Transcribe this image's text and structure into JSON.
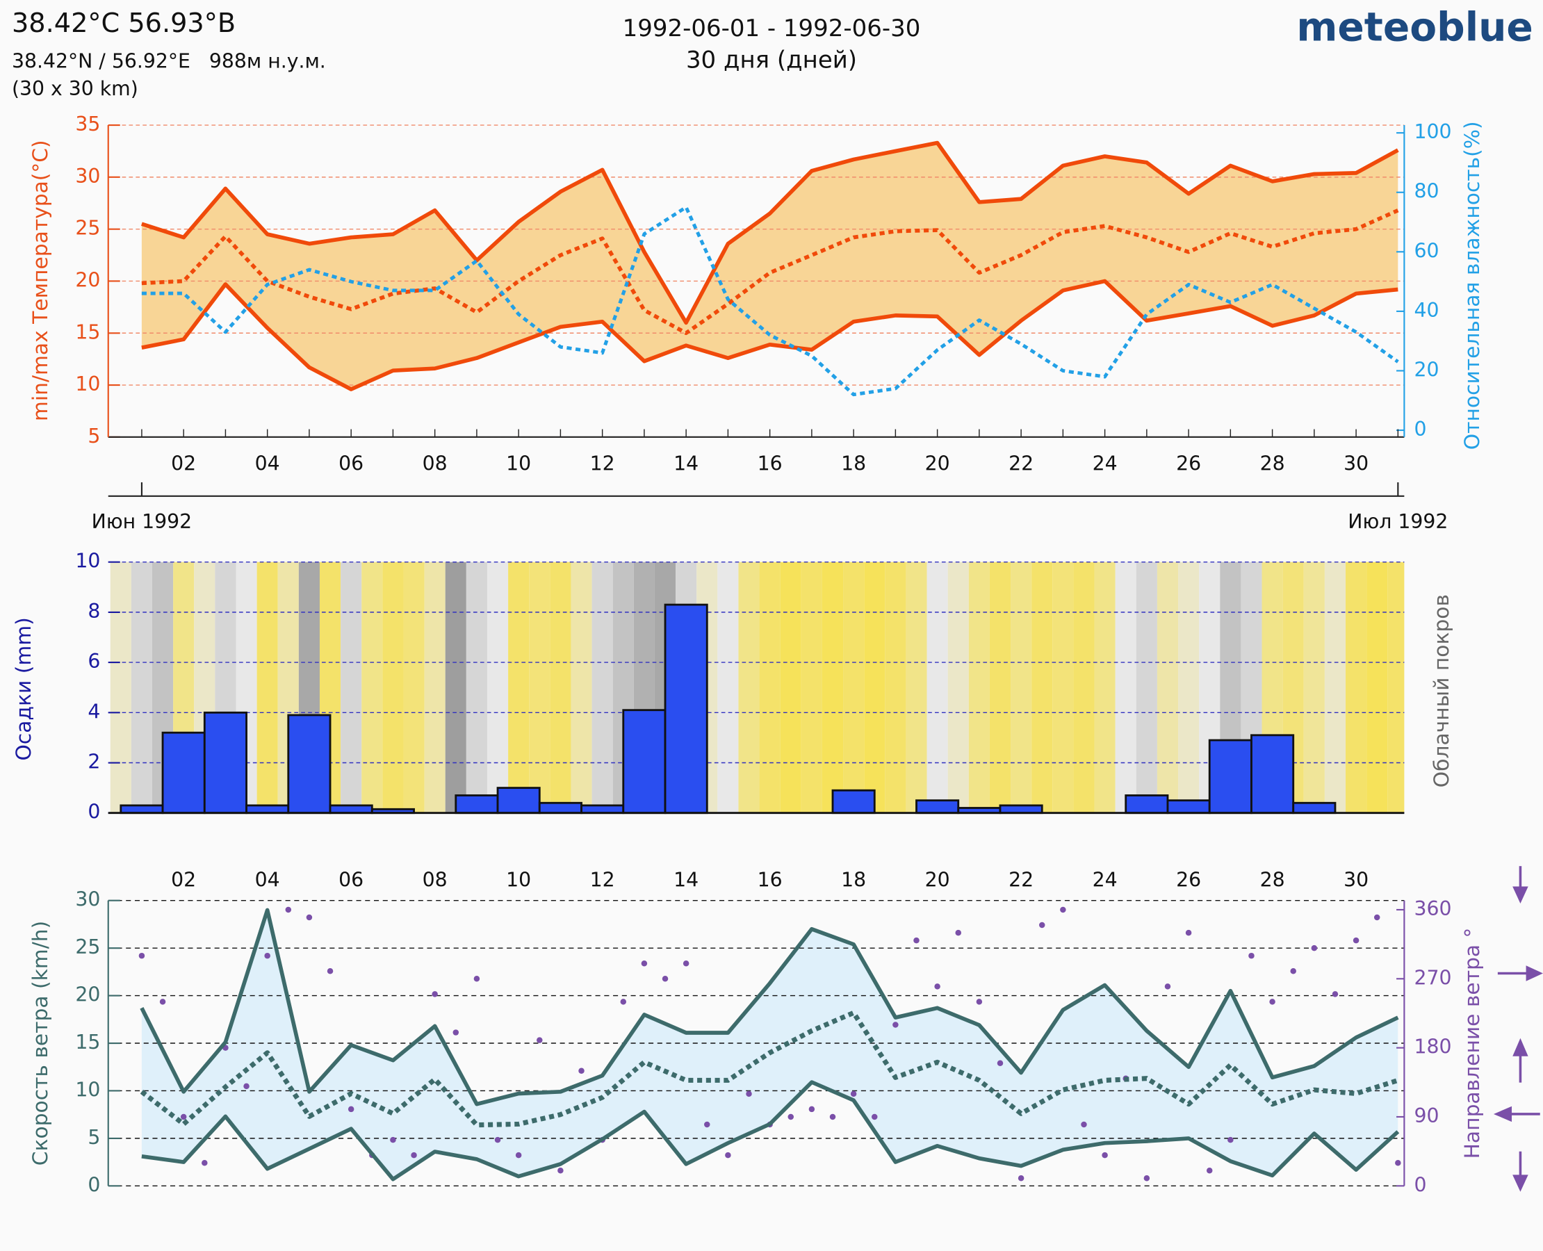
{
  "header": {
    "title": "38.42°C 56.93°B",
    "coords": "38.42°N / 56.92°E   988м н.у.м.",
    "resolution": "(30 x 30 km)",
    "period": "1992-06-01 - 1992-06-30",
    "days": "30 дня (дней)",
    "brand": "meteoblue"
  },
  "chart_data": [
    {
      "type": "line",
      "x": [
        1,
        2,
        3,
        4,
        5,
        6,
        7,
        8,
        9,
        10,
        11,
        12,
        13,
        14,
        15,
        16,
        17,
        18,
        19,
        20,
        21,
        22,
        23,
        24,
        25,
        26,
        27,
        28,
        29,
        30,
        31
      ],
      "xlim": [
        0.2,
        31.15
      ],
      "xticks": [
        {
          "value": 2,
          "label": "02"
        },
        {
          "value": 4,
          "label": "04"
        },
        {
          "value": 6,
          "label": "06"
        },
        {
          "value": 8,
          "label": "08"
        },
        {
          "value": 10,
          "label": "10"
        },
        {
          "value": 12,
          "label": "12"
        },
        {
          "value": 14,
          "label": "14"
        },
        {
          "value": 16,
          "label": "16"
        },
        {
          "value": 18,
          "label": "18"
        },
        {
          "value": 20,
          "label": "20"
        },
        {
          "value": 22,
          "label": "22"
        },
        {
          "value": 24,
          "label": "24"
        },
        {
          "value": 26,
          "label": "26"
        },
        {
          "value": 28,
          "label": "28"
        },
        {
          "value": 30,
          "label": "30"
        }
      ],
      "month_ticks": [
        {
          "value": 1,
          "label": "Июн 1992"
        },
        {
          "value": 31,
          "label": "Июл 1992"
        }
      ],
      "ylim": [
        5,
        35
      ],
      "yticks": [
        5,
        10,
        15,
        20,
        25,
        30,
        35
      ],
      "y2lim": [
        -2.3,
        102.6
      ],
      "y2ticks": [
        0,
        20,
        40,
        60,
        80,
        100
      ],
      "ylabel": "min/max Температура(°C)",
      "y2label": "Относительная влажность(%)",
      "grid": true,
      "fill_color": "#f8d596",
      "axis_color": "#e8501a",
      "axis2_color": "#22a0e6",
      "series": [
        {
          "color": "#f04a0a",
          "style": "solid",
          "values": [
            25.5,
            24.2,
            28.9,
            24.5,
            23.6,
            24.2,
            24.5,
            26.8,
            22.0,
            25.7,
            28.6,
            30.7,
            22.8,
            16.0,
            23.6,
            26.5,
            30.6,
            31.7,
            32.5,
            33.3,
            27.6,
            27.9,
            31.1,
            32.0,
            31.4,
            28.4,
            31.1,
            29.6,
            30.3,
            30.4,
            32.6
          ]
        },
        {
          "color": "#f04a0a",
          "style": "dotted",
          "values": [
            19.8,
            20.0,
            24.3,
            20.0,
            18.5,
            17.3,
            18.8,
            19.3,
            17.0,
            20.0,
            22.5,
            24.1,
            17.2,
            15.0,
            17.8,
            20.8,
            22.5,
            24.2,
            24.8,
            24.9,
            20.8,
            22.5,
            24.7,
            25.3,
            24.2,
            22.8,
            24.6,
            23.3,
            24.6,
            25.0,
            26.8
          ]
        },
        {
          "color": "#f04a0a",
          "style": "solid",
          "values": [
            13.6,
            14.4,
            19.7,
            15.5,
            11.7,
            9.6,
            11.4,
            11.6,
            12.6,
            14.1,
            15.6,
            16.1,
            12.3,
            13.8,
            12.6,
            13.9,
            13.4,
            16.1,
            16.7,
            16.6,
            12.9,
            16.2,
            19.1,
            20.0,
            16.2,
            16.9,
            17.6,
            15.7,
            16.7,
            18.8,
            19.2
          ]
        },
        {
          "color": "#22a0e6",
          "style": "dotted",
          "axis": "y2",
          "values": [
            46,
            46,
            33,
            49,
            54,
            50,
            47,
            47,
            57,
            39,
            28,
            26,
            66,
            75,
            44,
            32,
            25,
            12,
            14,
            27,
            37,
            29,
            20,
            18,
            39,
            49,
            43,
            49,
            41,
            33,
            23
          ]
        }
      ]
    },
    {
      "type": "bar",
      "x": [
        1,
        2,
        3,
        4,
        5,
        6,
        7,
        8,
        9,
        10,
        11,
        12,
        13,
        14,
        15,
        16,
        17,
        18,
        19,
        20,
        21,
        22,
        23,
        24,
        25,
        26,
        27,
        28,
        29,
        30
      ],
      "xlim": [
        0.2,
        31.15
      ],
      "values": [
        0.3,
        3.2,
        4.0,
        0.3,
        3.9,
        0.3,
        0.15,
        0,
        0.7,
        1.0,
        0.4,
        0.3,
        4.1,
        8.3,
        0,
        0,
        0,
        0.9,
        0,
        0.5,
        0.2,
        0.3,
        0,
        0,
        0.7,
        0.5,
        2.9,
        3.1,
        0.4,
        0
      ],
      "color": "#2a4ef0",
      "ylim": [
        0,
        10
      ],
      "yticks": [
        0,
        2,
        4,
        6,
        8,
        10
      ],
      "grid": true,
      "ylabel": "Осадки (mm)",
      "y2label": "Облачный покров",
      "axis_color": "#1a1aa0",
      "cloud_x": [
        0.5,
        1,
        1.5,
        2,
        2.5,
        3,
        3.5,
        4,
        4.5,
        5,
        5.5,
        6,
        6.5,
        7,
        7.5,
        8,
        8.5,
        9,
        9.5,
        10,
        10.5,
        11,
        11.5,
        12,
        12.5,
        13,
        13.5,
        14,
        14.5,
        15,
        15.5,
        16,
        16.5,
        17,
        17.5,
        18,
        18.5,
        19,
        19.5,
        20,
        20.5,
        21,
        21.5,
        22,
        22.5,
        23,
        23.5,
        24,
        24.5,
        25,
        25.5,
        26,
        26.5,
        27,
        27.5,
        28,
        28.5,
        29,
        29.5,
        30,
        30.5,
        31
      ],
      "cloud_cover": [
        40,
        60,
        70,
        20,
        40,
        60,
        50,
        10,
        30,
        85,
        10,
        60,
        20,
        10,
        15,
        30,
        90,
        60,
        50,
        10,
        15,
        10,
        30,
        60,
        70,
        80,
        85,
        60,
        40,
        50,
        20,
        10,
        5,
        10,
        5,
        10,
        5,
        10,
        20,
        50,
        40,
        20,
        10,
        20,
        10,
        15,
        10,
        20,
        50,
        60,
        30,
        40,
        50,
        70,
        60,
        20,
        15,
        25,
        40,
        10,
        5,
        10
      ]
    },
    {
      "type": "line",
      "x": [
        1,
        2,
        3,
        4,
        5,
        6,
        7,
        8,
        9,
        10,
        11,
        12,
        13,
        14,
        15,
        16,
        17,
        18,
        19,
        20,
        21,
        22,
        23,
        24,
        25,
        26,
        27,
        28,
        29,
        30,
        31
      ],
      "xlim": [
        0.2,
        31.15
      ],
      "xticks": [
        {
          "value": 2,
          "label": "02"
        },
        {
          "value": 4,
          "label": "04"
        },
        {
          "value": 6,
          "label": "06"
        },
        {
          "value": 8,
          "label": "08"
        },
        {
          "value": 10,
          "label": "10"
        },
        {
          "value": 12,
          "label": "12"
        },
        {
          "value": 14,
          "label": "14"
        },
        {
          "value": 16,
          "label": "16"
        },
        {
          "value": 18,
          "label": "18"
        },
        {
          "value": 20,
          "label": "20"
        },
        {
          "value": 22,
          "label": "22"
        },
        {
          "value": 24,
          "label": "24"
        },
        {
          "value": 26,
          "label": "26"
        },
        {
          "value": 28,
          "label": "28"
        },
        {
          "value": 30,
          "label": "30"
        }
      ],
      "ylim": [
        0,
        30
      ],
      "yticks": [
        0,
        5,
        10,
        15,
        20,
        25,
        30
      ],
      "y2lim": [
        0,
        372
      ],
      "y2ticks": [
        0,
        90,
        180,
        270,
        360
      ],
      "ylabel": "Скорость ветра (km/h)",
      "y2label": "Направление ветра °",
      "grid": true,
      "fill_color": "#dff0fa",
      "axis_color": "#3d6b6b",
      "axis2_color": "#7a4fa8",
      "series": [
        {
          "color": "#3d6b6b",
          "style": "solid",
          "values": [
            18.7,
            9.9,
            15.1,
            29,
            9.9,
            14.8,
            13.2,
            16.8,
            8.6,
            9.7,
            9.9,
            11.6,
            18,
            16.1,
            16.1,
            21.3,
            27,
            25.4,
            17.7,
            18.7,
            16.9,
            11.9,
            18.5,
            21.1,
            16.3,
            12.5,
            20.5,
            11.4,
            12.6,
            15.6,
            17.7
          ]
        },
        {
          "color": "#3d6b6b",
          "style": "dotted",
          "values": [
            9.9,
            6.5,
            10.4,
            14,
            7.3,
            9.7,
            7.6,
            11.2,
            6.4,
            6.5,
            7.5,
            9.3,
            13,
            11.1,
            11.1,
            14,
            16.3,
            18.2,
            11.4,
            13,
            11.1,
            7.6,
            10.1,
            11.1,
            11.3,
            8.6,
            12.7,
            8.6,
            10.1,
            9.7,
            11.1
          ]
        },
        {
          "color": "#3d6b6b",
          "style": "solid",
          "values": [
            3.1,
            2.5,
            7.3,
            1.8,
            3.9,
            6,
            0.7,
            3.6,
            2.8,
            1,
            2.3,
            4.9,
            7.8,
            2.3,
            4.5,
            6.5,
            10.9,
            9,
            2.5,
            4.2,
            2.9,
            2.1,
            3.8,
            4.5,
            4.7,
            5,
            2.6,
            1.1,
            5.5,
            1.7,
            5.7
          ]
        },
        {
          "color": "#7a4fa8",
          "style": "dots",
          "axis": "y2",
          "x": [
            1,
            1.5,
            2,
            2.5,
            3,
            3.5,
            4,
            4.5,
            5,
            5.5,
            6,
            6.5,
            7,
            7.5,
            8,
            8.5,
            9,
            9.5,
            10,
            10.5,
            11,
            11.5,
            12,
            12.5,
            13,
            13.5,
            14,
            14.5,
            15,
            15.5,
            16,
            16.5,
            17,
            17.5,
            18,
            18.5,
            19,
            19.5,
            20,
            20.5,
            21,
            21.5,
            22,
            22.5,
            23,
            23.5,
            24,
            24.5,
            25,
            25.5,
            26,
            26.5,
            27,
            27.5,
            28,
            28.5,
            29,
            29.5,
            30,
            30.5,
            31
          ],
          "values": [
            300,
            240,
            90,
            30,
            180,
            130,
            300,
            360,
            350,
            280,
            100,
            40,
            60,
            40,
            250,
            200,
            270,
            60,
            40,
            190,
            20,
            150,
            60,
            240,
            290,
            270,
            290,
            80,
            40,
            120,
            80,
            90,
            100,
            90,
            120,
            90,
            210,
            320,
            260,
            330,
            240,
            160,
            10,
            340,
            360,
            80,
            40,
            140,
            10,
            260,
            330,
            20,
            60,
            300,
            240,
            280,
            310,
            250,
            320,
            350,
            30
          ]
        }
      ]
    }
  ]
}
